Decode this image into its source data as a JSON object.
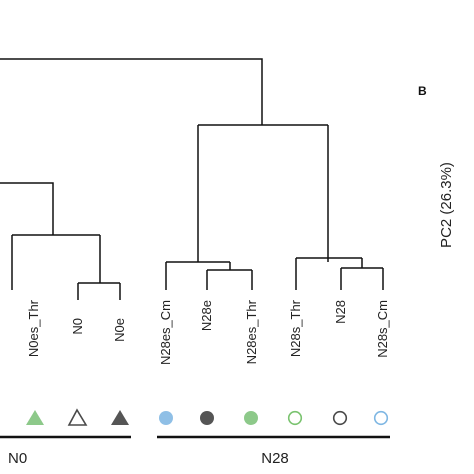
{
  "figure": {
    "panel_label": "B",
    "pc2_axis_label": "PC2 (26.3%)"
  },
  "leaves": [
    {
      "label": "N0es_Thr",
      "marker": "triangle-filled",
      "color": "#8dc98a"
    },
    {
      "label": "N0",
      "marker": "triangle-open",
      "color": "#4a4a4a"
    },
    {
      "label": "N0e",
      "marker": "triangle-filled",
      "color": "#555555"
    },
    {
      "label": "N28es_Cm",
      "marker": "circle-filled",
      "color": "#8fbfe6"
    },
    {
      "label": "N28e",
      "marker": "circle-filled",
      "color": "#555555"
    },
    {
      "label": "N28es_Thr",
      "marker": "circle-filled",
      "color": "#8dc98a"
    },
    {
      "label": "N28s_Thr",
      "marker": "circle-open",
      "color": "#7ac36f"
    },
    {
      "label": "N28",
      "marker": "circle-open",
      "color": "#4a4a4a"
    },
    {
      "label": "N28s_Cm",
      "marker": "circle-open",
      "color": "#7fb7e3"
    }
  ],
  "groups": [
    {
      "label": "N0"
    },
    {
      "label": "N28"
    }
  ]
}
